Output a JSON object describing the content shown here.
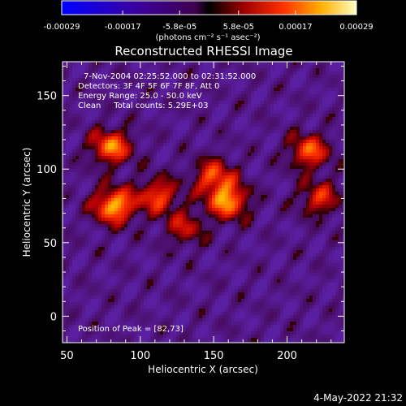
{
  "colorbar": {
    "tick_labels": [
      "-0.00029",
      "-0.00017",
      "-5.8e-05",
      "5.8e-05",
      "0.00017",
      "0.00029"
    ],
    "unit_label": "(photons cm⁻² s⁻¹ asec⁻²)",
    "range": [
      -0.00029,
      0.00029
    ]
  },
  "chart_data": {
    "type": "heatmap",
    "title": "Reconstructed RHESSI Image",
    "xlabel": "Heliocentric X (arcsec)",
    "ylabel": "Heliocentric Y (arcsec)",
    "xlim": [
      47,
      239
    ],
    "ylim": [
      -18,
      173
    ],
    "x_ticks": [
      "50",
      "100",
      "150",
      "200"
    ],
    "y_ticks": [
      "0",
      "50",
      "100",
      "150"
    ],
    "annotations": [
      "7-Nov-2004 02:25:52.000 to 02:31:52.000",
      "Detectors: 3F 4F 5F 6F 7F 8F, Att 0",
      "Energy Range: 25.0 - 50.0 keV",
      "Clean     Total counts: 5.29E+03"
    ],
    "peak_label": "Position of Peak = [82,73]",
    "sources": [
      {
        "x": 82,
        "y": 75,
        "peak": 1.0
      },
      {
        "x": 80,
        "y": 115,
        "peak": 0.85
      },
      {
        "x": 112,
        "y": 82,
        "peak": 0.7
      },
      {
        "x": 160,
        "y": 78,
        "peak": 0.9
      },
      {
        "x": 150,
        "y": 95,
        "peak": 0.7
      },
      {
        "x": 215,
        "y": 112,
        "peak": 0.75
      },
      {
        "x": 222,
        "y": 80,
        "peak": 0.6
      },
      {
        "x": 130,
        "y": 60,
        "peak": 0.5
      }
    ]
  },
  "footer": {
    "timestamp": "4-May-2022 21:32"
  }
}
